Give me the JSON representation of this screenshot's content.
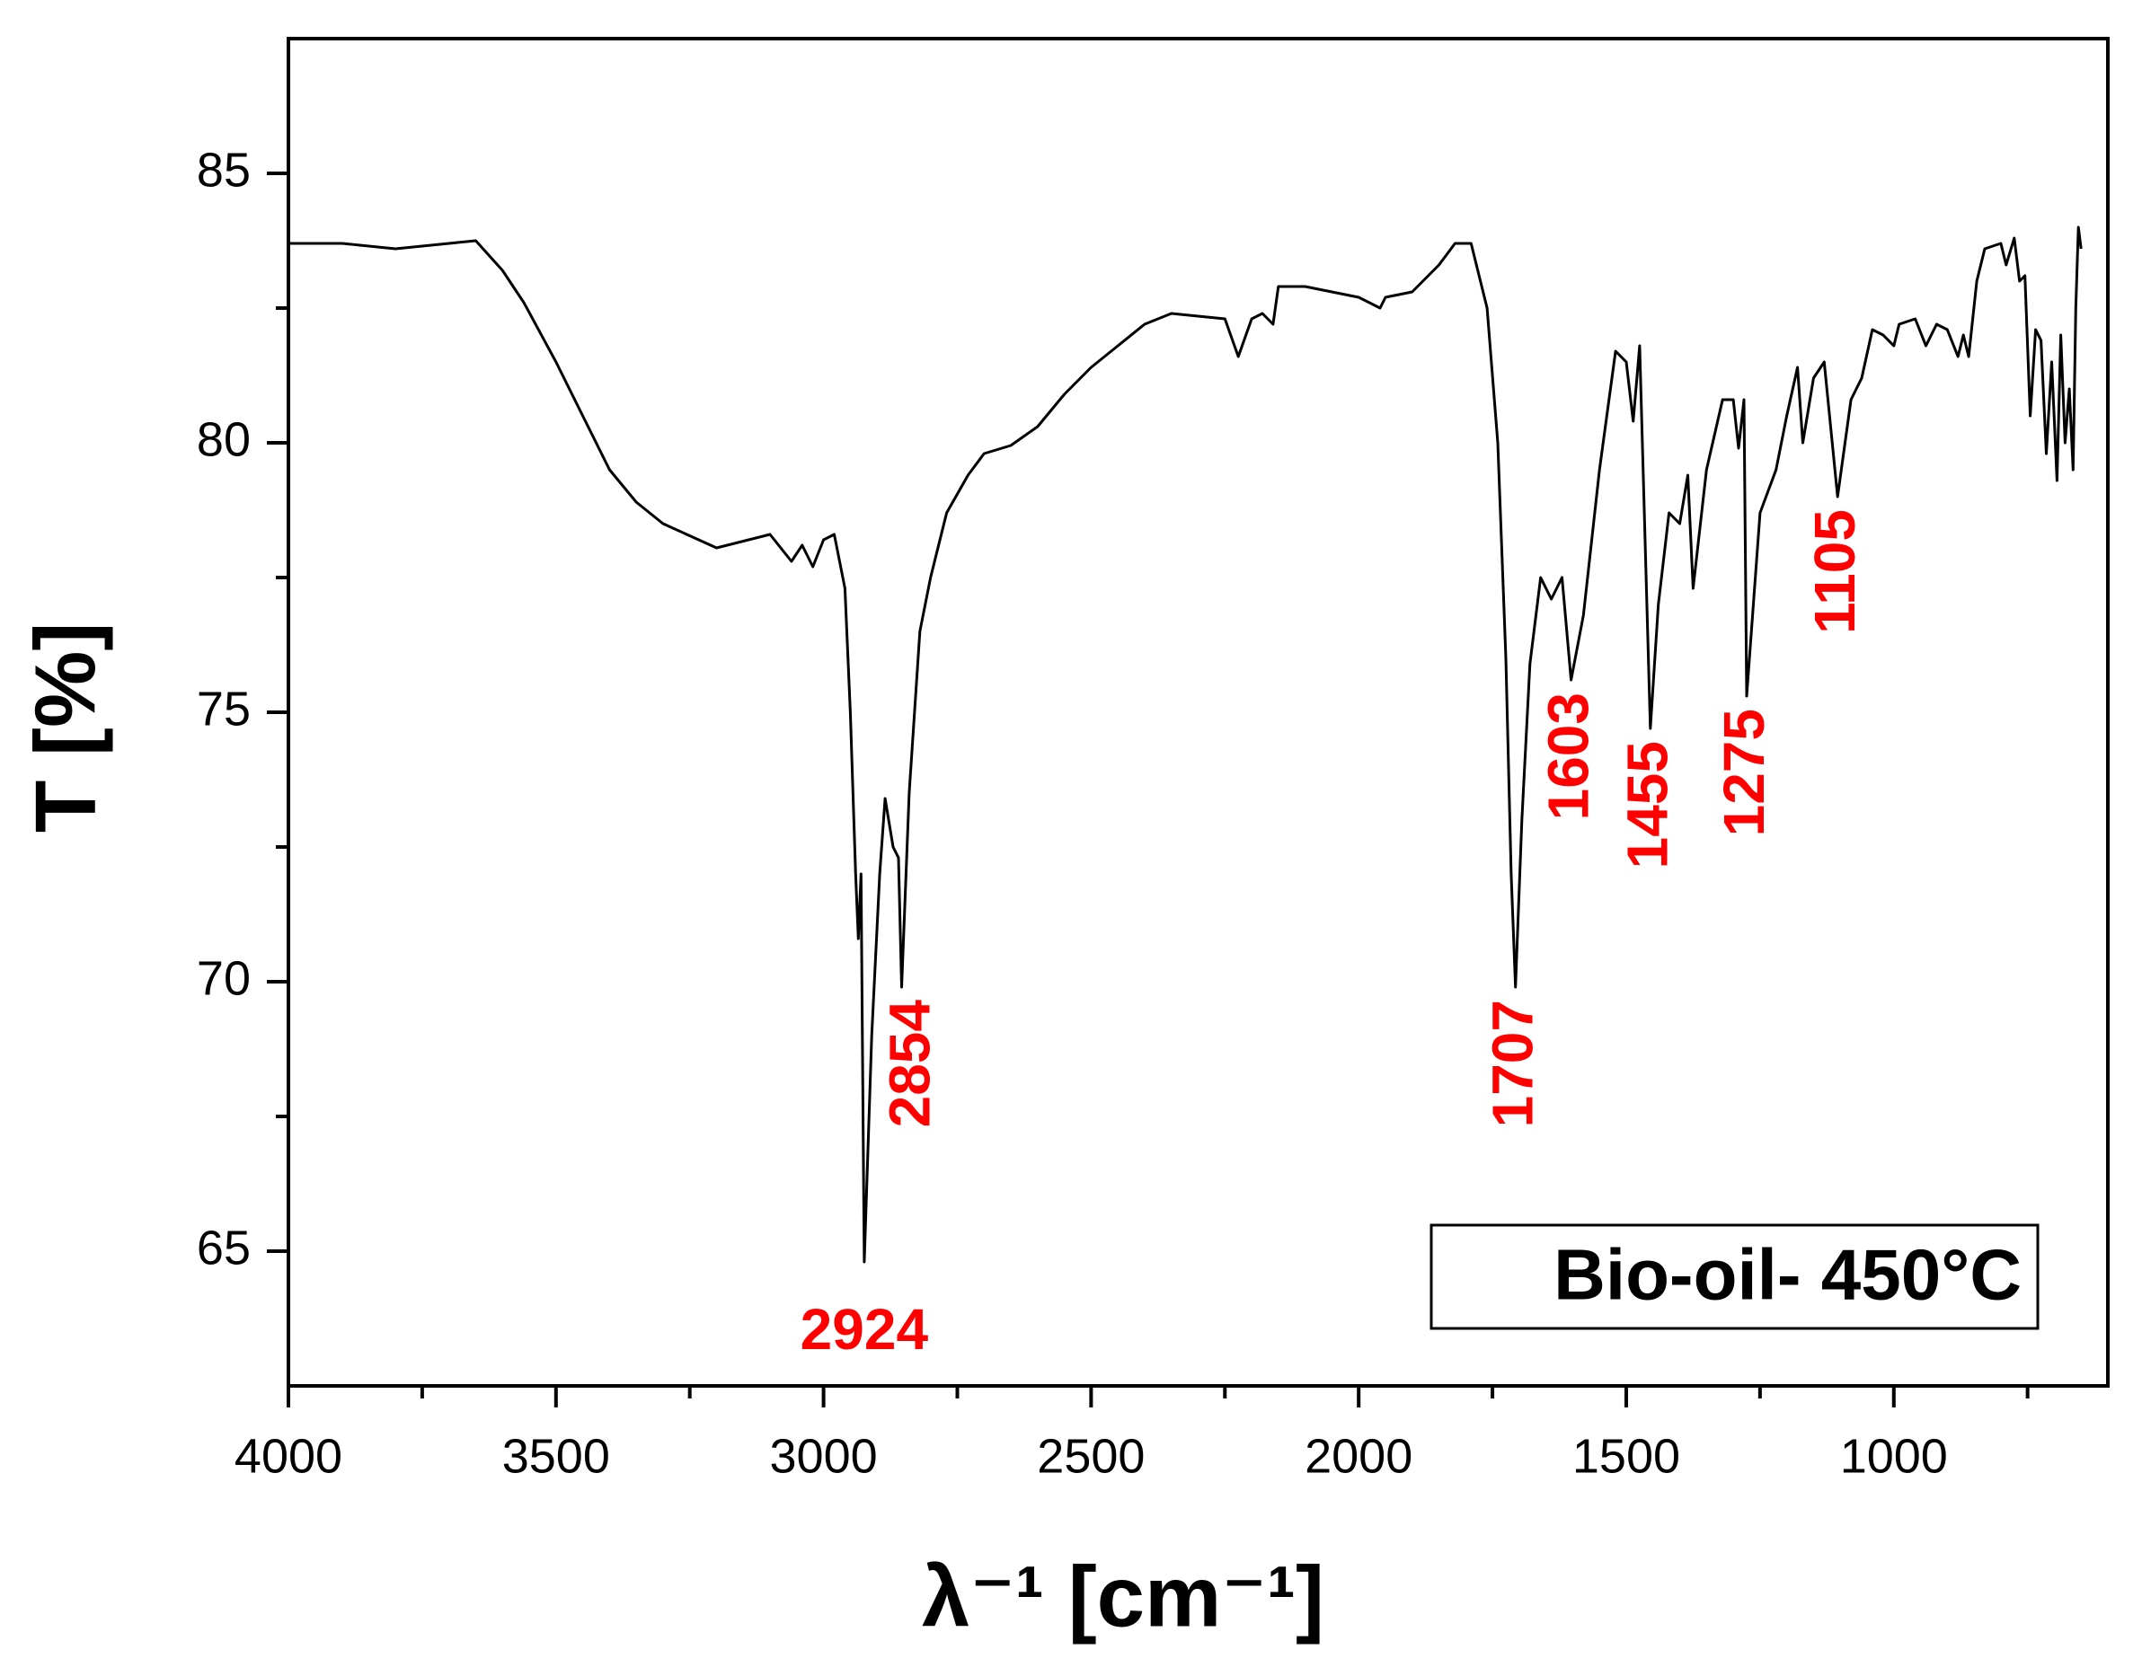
{
  "chart_data": {
    "type": "line",
    "xlabel": "λ⁻¹ [cm⁻¹]",
    "ylabel": "T [%]",
    "xlim": [
      4000,
      600
    ],
    "ylim": [
      62.5,
      87.5
    ],
    "xticks": [
      4000,
      3500,
      3000,
      2500,
      2000,
      1500,
      1000
    ],
    "yticks": [
      65,
      70,
      75,
      80,
      85
    ],
    "xticks_minor": [
      3750,
      3250,
      2750,
      2250,
      1750,
      1250,
      750
    ],
    "yticks_minor": [
      67.5,
      72.5,
      77.5,
      82.5
    ],
    "legend": "lower right",
    "series": [
      {
        "name": "Bio-oil- 450°C",
        "color": "#000000",
        "x": [
          4000,
          3900,
          3800,
          3700,
          3650,
          3600,
          3560,
          3500,
          3450,
          3400,
          3350,
          3300,
          3200,
          3100,
          3060,
          3040,
          3020,
          3000,
          2980,
          2960,
          2950,
          2940,
          2935,
          2930,
          2924,
          2910,
          2895,
          2885,
          2870,
          2860,
          2854,
          2840,
          2820,
          2800,
          2770,
          2730,
          2700,
          2650,
          2600,
          2550,
          2500,
          2450,
          2400,
          2350,
          2250,
          2225,
          2200,
          2180,
          2160,
          2150,
          2100,
          2050,
          2000,
          1960,
          1950,
          1900,
          1850,
          1820,
          1790,
          1760,
          1740,
          1725,
          1715,
          1707,
          1695,
          1680,
          1660,
          1640,
          1620,
          1603,
          1580,
          1550,
          1520,
          1500,
          1487,
          1475,
          1455,
          1440,
          1420,
          1400,
          1385,
          1375,
          1350,
          1320,
          1300,
          1290,
          1280,
          1275,
          1250,
          1220,
          1200,
          1180,
          1170,
          1150,
          1130,
          1105,
          1080,
          1060,
          1040,
          1020,
          1000,
          990,
          960,
          940,
          920,
          900,
          880,
          870,
          860,
          845,
          830,
          800,
          790,
          775,
          765,
          755,
          745,
          735,
          725,
          715,
          705,
          695,
          688,
          680,
          672,
          665,
          660,
          655,
          650
        ],
        "values": [
          83.7,
          83.7,
          83.6,
          83.7,
          83.75,
          83.2,
          82.6,
          81.5,
          80.5,
          79.5,
          78.9,
          78.5,
          78.05,
          78.3,
          77.8,
          78.1,
          77.7,
          78.2,
          78.3,
          77.3,
          75,
          72,
          70.8,
          72.0,
          64.8,
          69,
          72,
          73.4,
          72.5,
          72.3,
          69.9,
          73.5,
          76.5,
          77.5,
          78.7,
          79.4,
          79.8,
          79.95,
          80.3,
          80.9,
          81.4,
          81.8,
          82.2,
          82.4,
          82.3,
          81.6,
          82.3,
          82.4,
          82.2,
          82.9,
          82.9,
          82.8,
          82.7,
          82.5,
          82.7,
          82.8,
          83.3,
          83.7,
          83.7,
          82.5,
          80,
          76,
          72,
          69.9,
          73,
          75.9,
          77.5,
          77.1,
          77.5,
          75.6,
          76.8,
          79.5,
          81.7,
          81.5,
          80.4,
          81.8,
          74.7,
          77,
          78.7,
          78.5,
          79.4,
          77.3,
          79.5,
          80.8,
          80.8,
          79.9,
          80.8,
          75.3,
          78.7,
          79.5,
          80.5,
          81.4,
          80,
          81.2,
          81.5,
          79.0,
          80.8,
          81.2,
          82.1,
          82.0,
          81.8,
          82.2,
          82.3,
          81.8,
          82.2,
          82.1,
          81.6,
          82.0,
          81.6,
          83.0,
          83.6,
          83.7,
          83.3,
          83.8,
          83.0,
          83.1,
          80.5,
          82.1,
          81.9,
          79.8,
          81.5,
          79.3,
          82.0,
          80.0,
          81.0,
          79.5,
          82.5,
          84.0,
          83.6
        ]
      }
    ],
    "annotations": [
      {
        "text": "2924",
        "x": 2924,
        "y": 64.8
      },
      {
        "text": "2854",
        "x": 2854,
        "y": 69.9
      },
      {
        "text": "1707",
        "x": 1707,
        "y": 69.9
      },
      {
        "text": "1603",
        "x": 1603,
        "y": 75.6
      },
      {
        "text": "1455",
        "x": 1455,
        "y": 74.7
      },
      {
        "text": "1275",
        "x": 1275,
        "y": 75.3
      },
      {
        "text": "1105",
        "x": 1105,
        "y": 79.0
      }
    ]
  }
}
